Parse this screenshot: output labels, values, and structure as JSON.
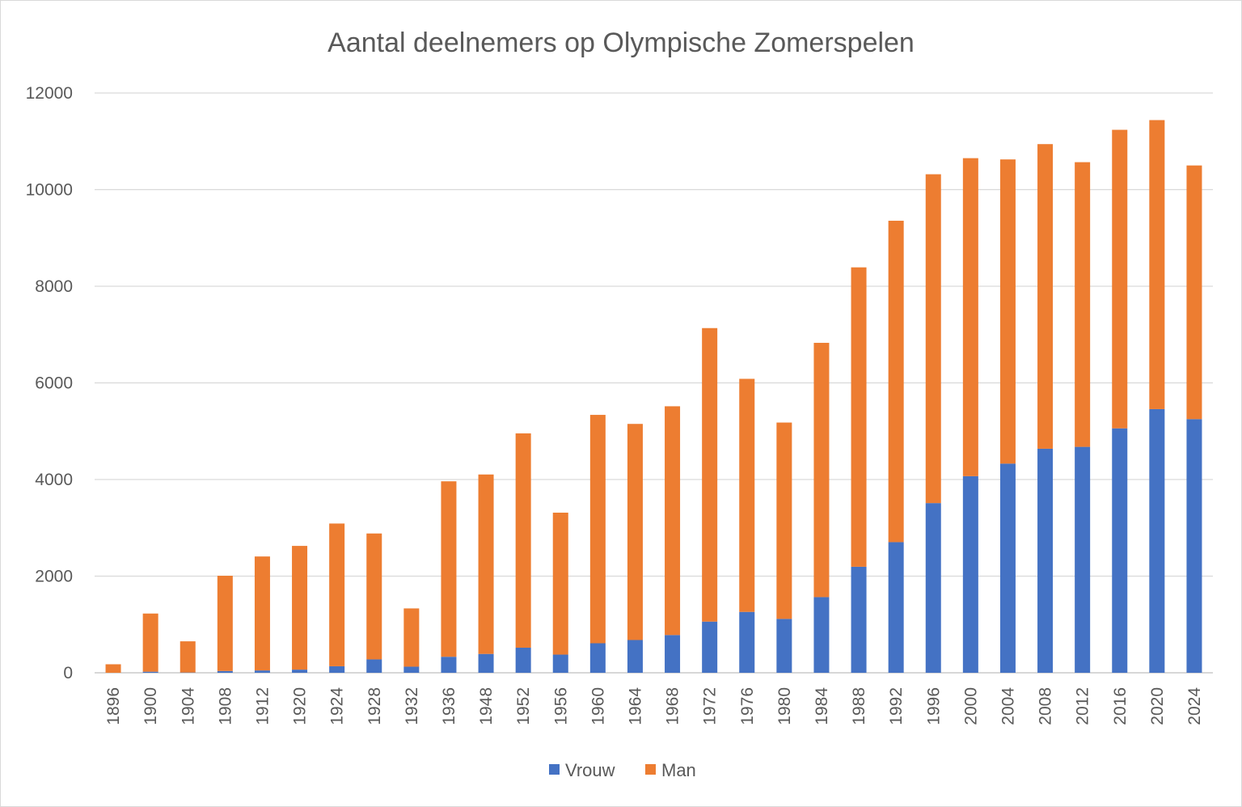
{
  "chart_data": {
    "type": "bar",
    "stacked": true,
    "title": "Aantal deelnemers op Olympische Zomerspelen",
    "xlabel": "",
    "ylabel": "",
    "ylim": [
      0,
      12000
    ],
    "yticks": [
      "0",
      "2000",
      "4000",
      "6000",
      "8000",
      "10000",
      "12000"
    ],
    "grid": true,
    "legend_position": "bottom",
    "categories": [
      "1896",
      "1900",
      "1904",
      "1908",
      "1912",
      "1920",
      "1924",
      "1928",
      "1932",
      "1936",
      "1948",
      "1952",
      "1956",
      "1960",
      "1964",
      "1968",
      "1972",
      "1976",
      "1980",
      "1984",
      "1988",
      "1992",
      "1996",
      "2000",
      "2004",
      "2008",
      "2012",
      "2016",
      "2020",
      "2024"
    ],
    "series": [
      {
        "name": "Vrouw",
        "color": "#4472c4",
        "values": [
          0,
          22,
          6,
          37,
          48,
          65,
          135,
          277,
          126,
          331,
          390,
          519,
          376,
          611,
          678,
          781,
          1059,
          1260,
          1115,
          1566,
          2194,
          2704,
          3512,
          4069,
          4329,
          4637,
          4676,
          5059,
          5457,
          5250
        ]
      },
      {
        "name": "Man",
        "color": "#ed7d31",
        "values": [
          176,
          1204,
          645,
          1971,
          2359,
          2561,
          2954,
          2606,
          1206,
          3632,
          3714,
          4436,
          2938,
          4727,
          4473,
          4735,
          6075,
          4824,
          4064,
          5263,
          6197,
          6652,
          6806,
          6582,
          6296,
          6305,
          5892,
          6179,
          5982,
          5250
        ]
      }
    ]
  }
}
